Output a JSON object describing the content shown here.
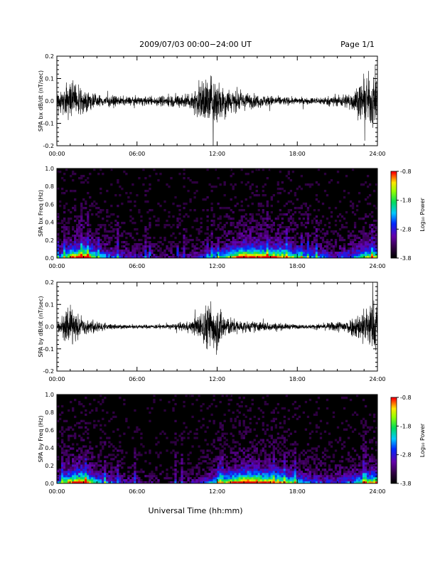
{
  "header": {
    "title": "2009/07/03  00:00−24:00 UT",
    "page": "Page 1/1"
  },
  "xlabel": "Universal Time (hh:mm)",
  "colorbar": {
    "label": "Log₁₀ Power",
    "ticks": [
      "-0.8",
      "-1.8",
      "-2.8",
      "-3.8"
    ]
  },
  "chart_data": [
    {
      "type": "line",
      "ylabel": "SPA bx dB/dt (nT/sec)",
      "xlim": [
        0,
        24
      ],
      "ylim": [
        -0.2,
        0.2
      ],
      "xticks": [
        "00:00",
        "06:00",
        "12:00",
        "18:00",
        "24:00"
      ],
      "yticks": [
        "-0.2",
        "-0.1",
        "0.0",
        "0.1",
        "0.2"
      ],
      "series": [
        {
          "x": [
            0,
            0.5,
            1,
            1.5,
            2,
            3,
            4,
            5,
            6,
            7,
            8,
            9,
            10,
            10.5,
            11,
            11.5,
            12,
            12.5,
            13,
            14,
            15,
            16,
            17,
            18,
            19,
            20,
            21,
            22,
            22.5,
            23,
            23.5,
            24
          ],
          "amplitude": [
            0.06,
            0.12,
            0.22,
            0.14,
            0.1,
            0.06,
            0.05,
            0.04,
            0.04,
            0.04,
            0.05,
            0.06,
            0.08,
            0.14,
            0.22,
            0.24,
            0.22,
            0.16,
            0.12,
            0.08,
            0.06,
            0.05,
            0.04,
            0.03,
            0.03,
            0.04,
            0.05,
            0.08,
            0.14,
            0.2,
            0.25,
            0.25
          ]
        }
      ]
    },
    {
      "type": "heatmap",
      "ylabel": "SPA bx Freq (Hz)",
      "xlim": [
        0,
        24
      ],
      "ylim": [
        0,
        1
      ],
      "clim": [
        -3.8,
        -0.8
      ],
      "xticks": [
        "00:00",
        "06:00",
        "12:00",
        "18:00",
        "24:00"
      ],
      "yticks": [
        "0.0",
        "0.2",
        "0.4",
        "0.6",
        "0.8",
        "1.0"
      ],
      "activity": [
        0.3,
        0.8,
        1.0,
        0.55,
        0.4,
        0.3,
        0.25,
        0.2,
        0.15,
        0.15,
        0.2,
        0.3,
        0.45,
        0.7,
        0.95,
        0.9,
        0.85,
        0.8,
        0.6,
        0.45,
        0.35,
        0.3,
        0.4,
        0.6,
        0.8
      ]
    },
    {
      "type": "line",
      "ylabel": "SPA by dB/dt (nT/sec)",
      "xlim": [
        0,
        24
      ],
      "ylim": [
        -0.2,
        0.2
      ],
      "xticks": [
        "00:00",
        "06:00",
        "12:00",
        "18:00",
        "24:00"
      ],
      "yticks": [
        "-0.2",
        "-0.1",
        "0.0",
        "0.1",
        "0.2"
      ],
      "series": [
        {
          "x": [
            0,
            0.5,
            1,
            1.5,
            2,
            3,
            4,
            5,
            6,
            7,
            8,
            9,
            10,
            10.5,
            11,
            11.5,
            12,
            12.5,
            13,
            14,
            15,
            16,
            17,
            18,
            19,
            20,
            21,
            22,
            22.5,
            23,
            23.5,
            24
          ],
          "amplitude": [
            0.03,
            0.1,
            0.2,
            0.12,
            0.08,
            0.05,
            0.03,
            0.02,
            0.02,
            0.02,
            0.02,
            0.03,
            0.05,
            0.1,
            0.18,
            0.24,
            0.22,
            0.14,
            0.08,
            0.05,
            0.05,
            0.04,
            0.03,
            0.02,
            0.02,
            0.03,
            0.05,
            0.08,
            0.12,
            0.18,
            0.24,
            0.25
          ]
        }
      ]
    },
    {
      "type": "heatmap",
      "ylabel": "SPA by Freq (Hz)",
      "xlim": [
        0,
        24
      ],
      "ylim": [
        0,
        1
      ],
      "clim": [
        -3.8,
        -0.8
      ],
      "xticks": [
        "00:00",
        "06:00",
        "12:00",
        "18:00",
        "24:00"
      ],
      "yticks": [
        "0.0",
        "0.2",
        "0.4",
        "0.6",
        "0.8",
        "1.0"
      ],
      "activity": [
        0.35,
        0.85,
        1.0,
        0.5,
        0.35,
        0.25,
        0.2,
        0.15,
        0.12,
        0.12,
        0.18,
        0.3,
        0.5,
        0.75,
        1.0,
        0.95,
        0.85,
        0.75,
        0.55,
        0.4,
        0.3,
        0.3,
        0.4,
        0.65,
        0.85
      ]
    }
  ]
}
